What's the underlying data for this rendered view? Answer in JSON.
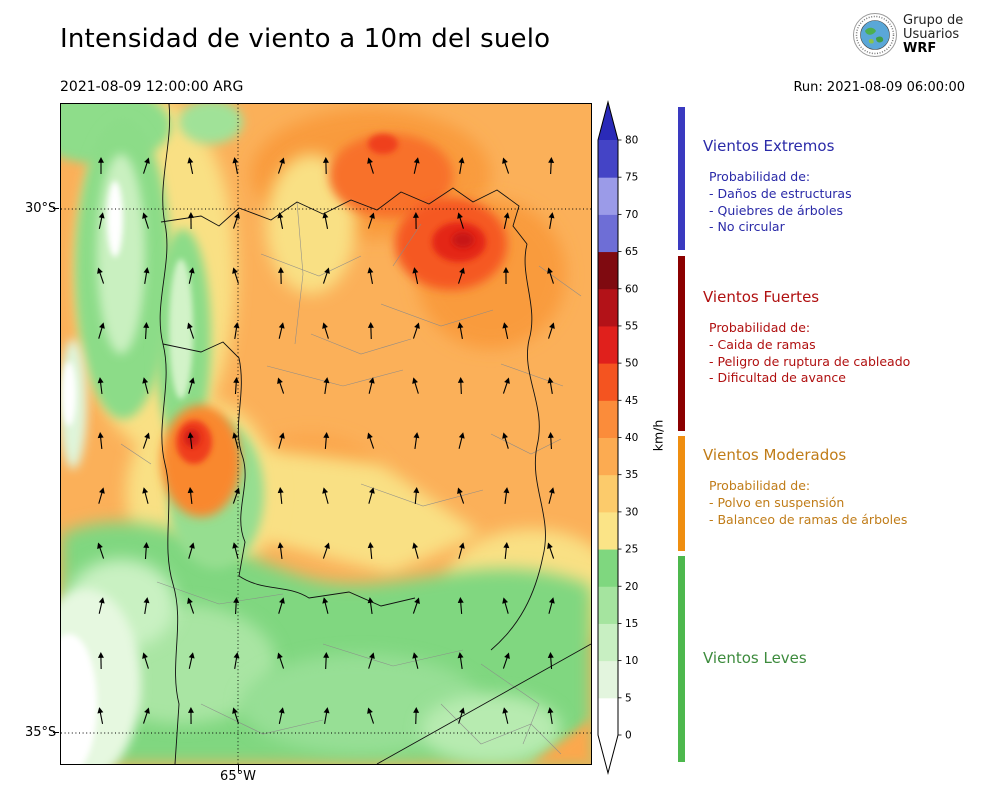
{
  "header": {
    "title": "Intensidad de viento a 10m del suelo",
    "valid_time": "2021-08-09 12:00:00 ARG",
    "run_label": "Run: 2021-08-09 06:00:00",
    "logo": {
      "line1": "Grupo de",
      "line2": "Usuarios",
      "line3": "WRF",
      "icon": "globe-icon"
    }
  },
  "map": {
    "lat_labels": [
      "30°S",
      "35°S"
    ],
    "lon_label": "65°W"
  },
  "colorbar": {
    "unit": "km/h",
    "ticks": [
      0,
      5,
      10,
      15,
      20,
      25,
      30,
      35,
      40,
      45,
      50,
      55,
      60,
      65,
      70,
      75,
      80
    ],
    "segment_colors": [
      "#ffffff",
      "#e3f5de",
      "#c8efc2",
      "#a5e49f",
      "#7fd77f",
      "#fbe487",
      "#fccb6b",
      "#fcab51",
      "#fb8c3a",
      "#f45420",
      "#e0201c",
      "#b31218",
      "#7f0a10",
      "#6e6ed6",
      "#9b9be8",
      "#4444c6"
    ],
    "over_color": "#2a2ab8",
    "under_color": "#ffffff"
  },
  "legend": {
    "sections": [
      {
        "name": "Vientos Extremos",
        "color": "#2a2aa8",
        "bar_color": "#3a3ac0",
        "prob_label": "Probabilidad de:",
        "items": [
          "- Daños de estructuras",
          "- Quiebres de árboles",
          "- No circular"
        ]
      },
      {
        "name": "Vientos Fuertes",
        "color": "#b01010",
        "bar_color": "#8b0000",
        "prob_label": "Probabilidad de:",
        "items": [
          "- Caida de ramas",
          "- Peligro de ruptura de cableado",
          "- Dificultad de avance"
        ]
      },
      {
        "name": "Vientos Moderados",
        "color": "#c07c18",
        "bar_color": "#ef8e10",
        "prob_label": "Probabilidad de:",
        "items": [
          "- Polvo en suspensión",
          "- Balanceo de ramas de árboles"
        ]
      },
      {
        "name": "Vientos Leves",
        "color": "#3d8b3d",
        "bar_color": "#4db84d"
      }
    ]
  }
}
